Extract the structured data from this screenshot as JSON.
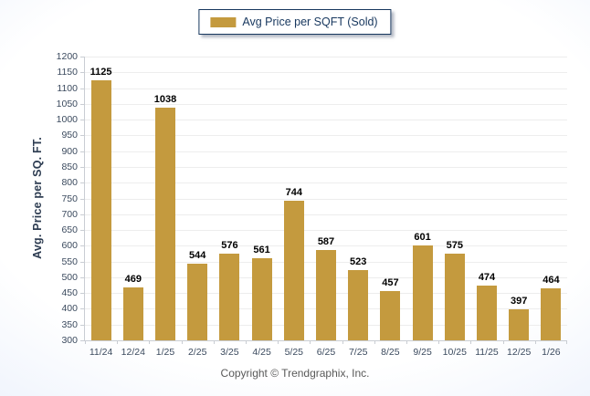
{
  "chart_data": {
    "type": "bar",
    "title": "",
    "legend": [
      "Avg Price per SQFT (Sold)"
    ],
    "legend_position": "top-center",
    "categories": [
      "11/24",
      "12/24",
      "1/25",
      "2/25",
      "3/25",
      "4/25",
      "5/25",
      "6/25",
      "7/25",
      "8/25",
      "9/25",
      "10/25",
      "11/25",
      "12/25",
      "1/26"
    ],
    "values": [
      1125,
      469,
      1038,
      544,
      576,
      561,
      744,
      587,
      523,
      457,
      601,
      575,
      474,
      397,
      464
    ],
    "xlabel": "",
    "ylabel": "Avg. Price per SQ. FT.",
    "ylim": [
      300,
      1200
    ],
    "ytick_step": 50,
    "yticks": [
      300,
      350,
      400,
      450,
      500,
      550,
      600,
      650,
      700,
      750,
      800,
      850,
      900,
      950,
      1000,
      1050,
      1100,
      1150,
      1200
    ],
    "grid": "horizontal"
  },
  "footer": {
    "copyright": "Copyright © Trendgraphix, Inc."
  },
  "colors": {
    "bar": "#C49A3E",
    "legend_border": "#17375E",
    "legend_text": "#17375E",
    "value_label": "#000000",
    "axis_text": "#3b4a5e",
    "gridline": "#ededed",
    "axis_line": "#c9cdd3",
    "footer_text": "#595959"
  }
}
